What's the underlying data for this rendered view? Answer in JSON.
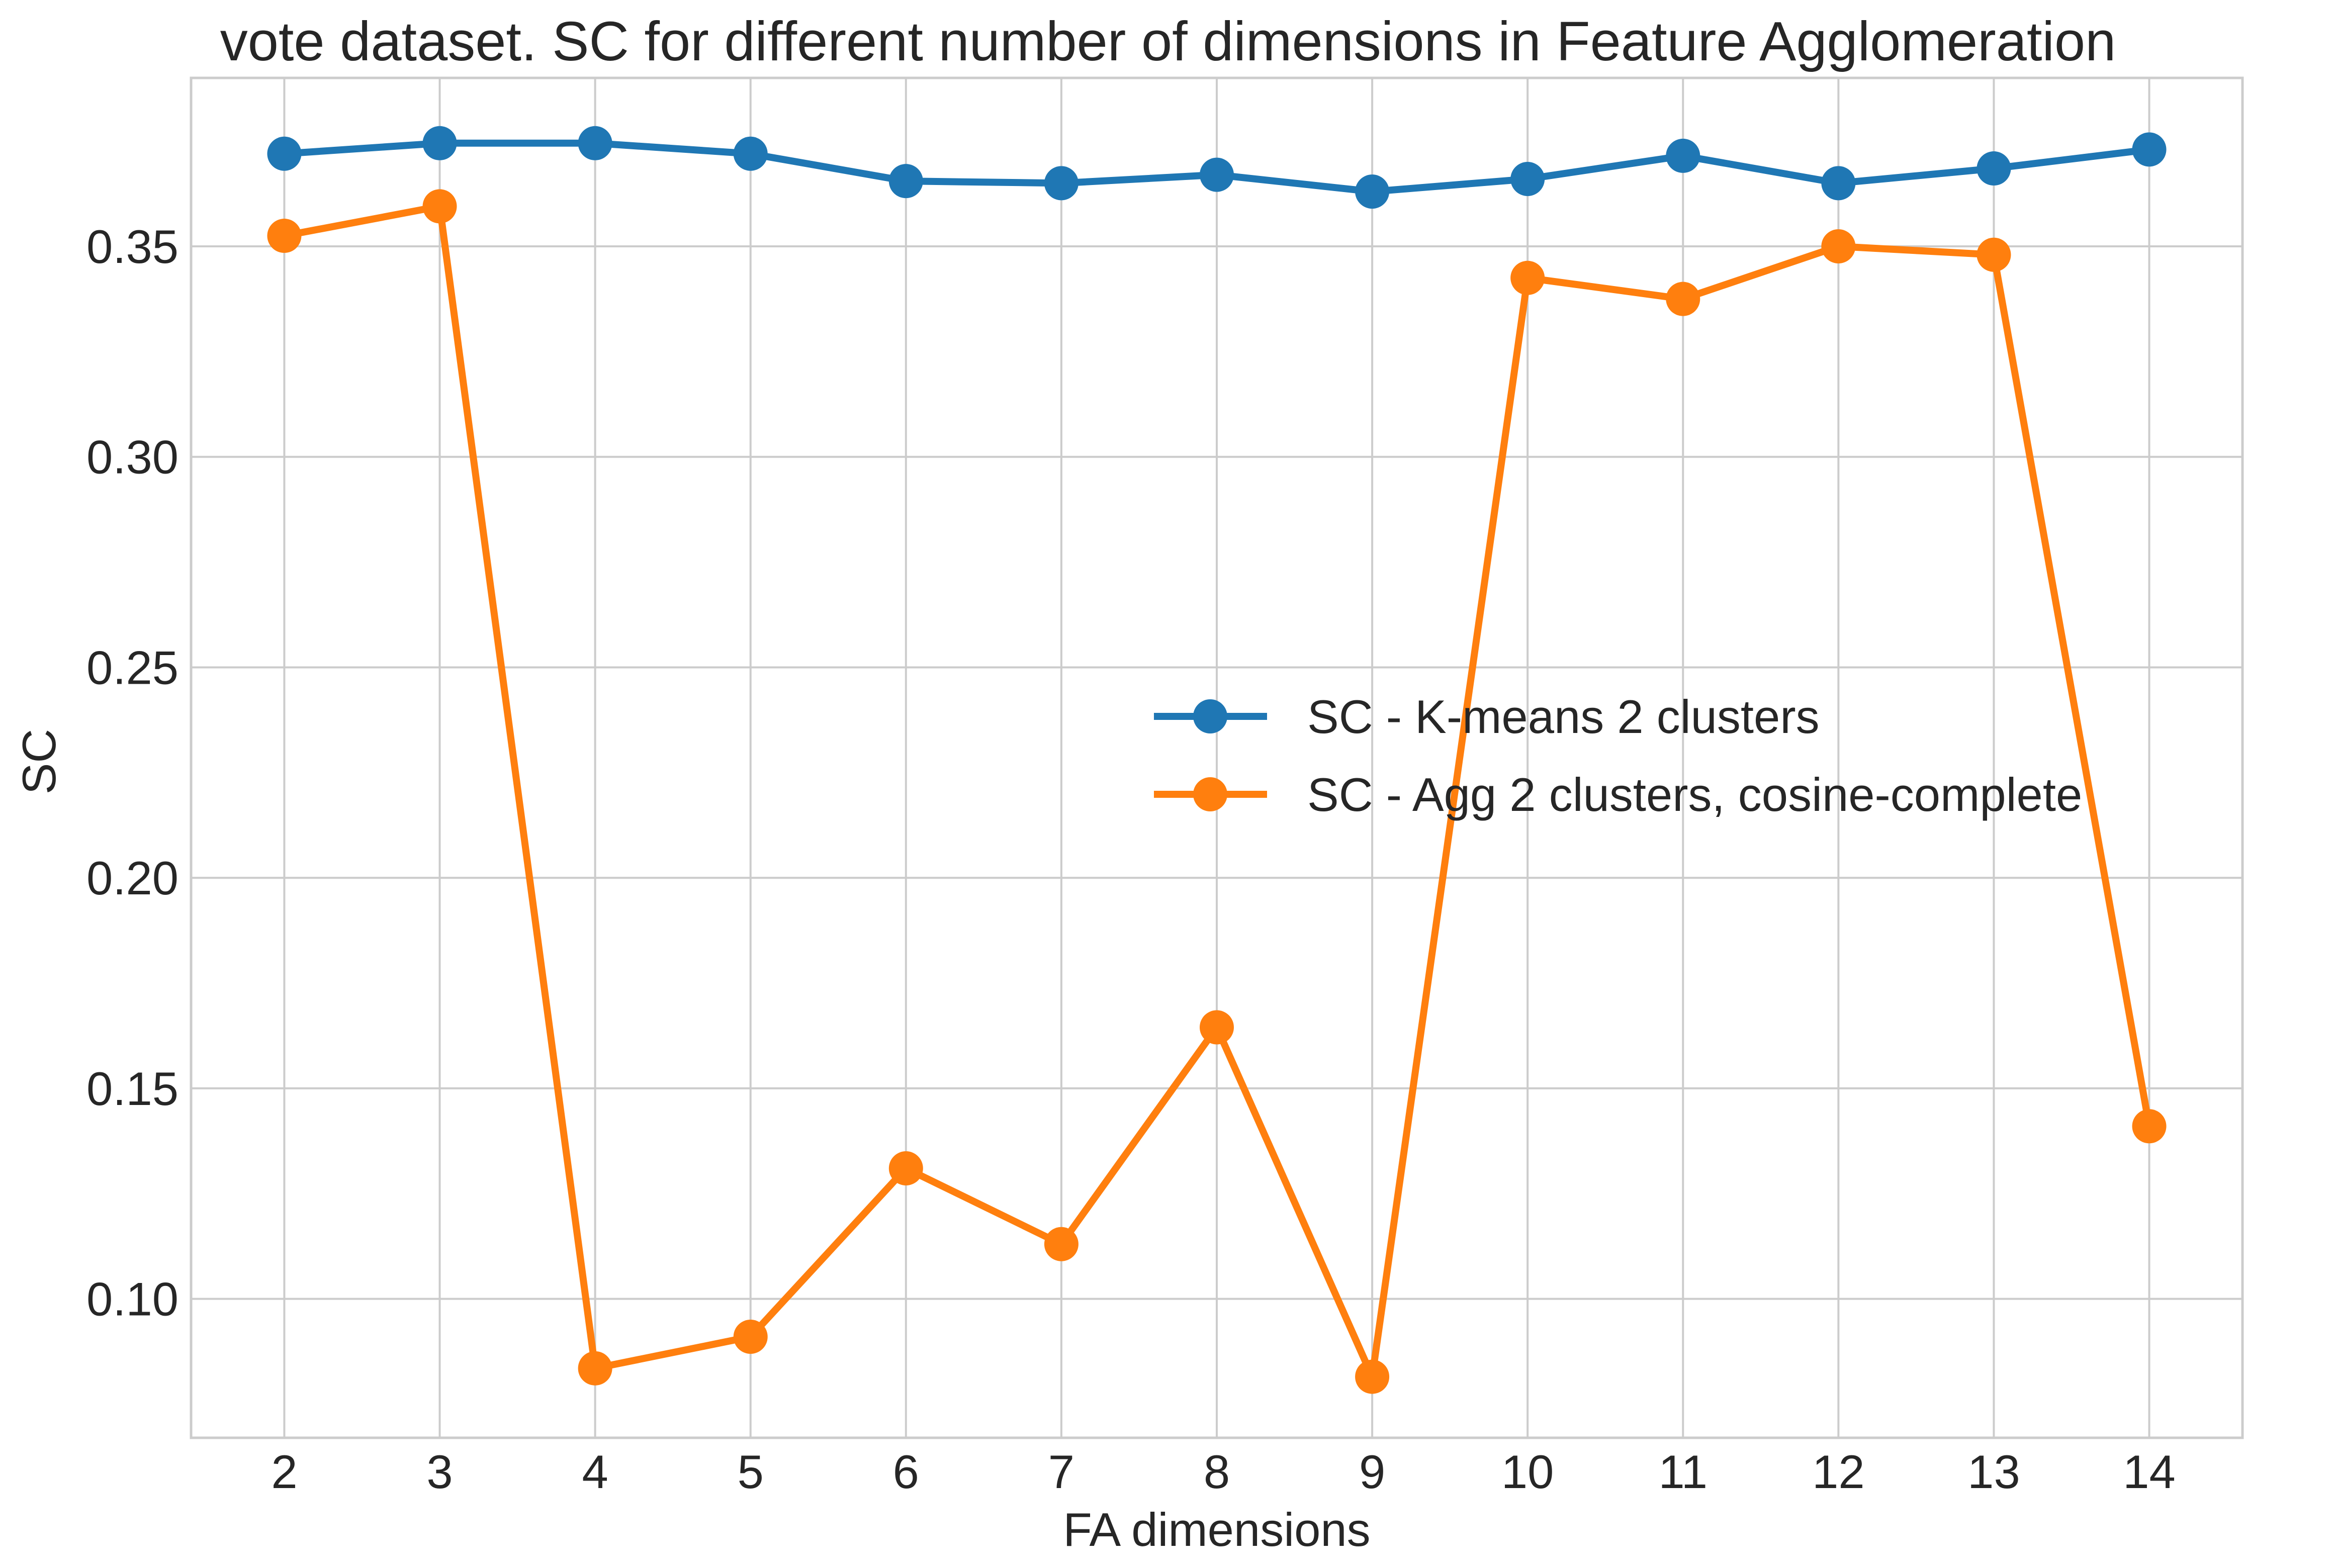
{
  "chart_data": {
    "type": "line",
    "title": "vote dataset. SC for different number of dimensions in Feature Agglomeration",
    "xlabel": "FA dimensions",
    "ylabel": "SC",
    "x": [
      2,
      3,
      4,
      5,
      6,
      7,
      8,
      9,
      10,
      11,
      12,
      13,
      14
    ],
    "xlim": [
      1.4,
      14.6
    ],
    "ylim": [
      0.067,
      0.39
    ],
    "yticks": [
      "0.10",
      "0.15",
      "0.20",
      "0.25",
      "0.30",
      "0.35"
    ],
    "ytick_values": [
      0.1,
      0.15,
      0.2,
      0.25,
      0.3,
      0.35
    ],
    "grid": true,
    "legend_position": "center-right",
    "series": [
      {
        "name": "SC - K-means 2 clusters",
        "color": "#1f77b4",
        "values": [
          0.372,
          0.3745,
          0.3745,
          0.372,
          0.3655,
          0.365,
          0.367,
          0.363,
          0.366,
          0.3715,
          0.365,
          0.3685,
          0.373
        ]
      },
      {
        "name": "SC - Agg 2 clusters, cosine-complete",
        "color": "#ff7f0e",
        "values": [
          0.3525,
          0.3595,
          0.0835,
          0.091,
          0.131,
          0.113,
          0.1645,
          0.0815,
          0.3425,
          0.3375,
          0.35,
          0.348,
          0.141
        ]
      }
    ]
  }
}
